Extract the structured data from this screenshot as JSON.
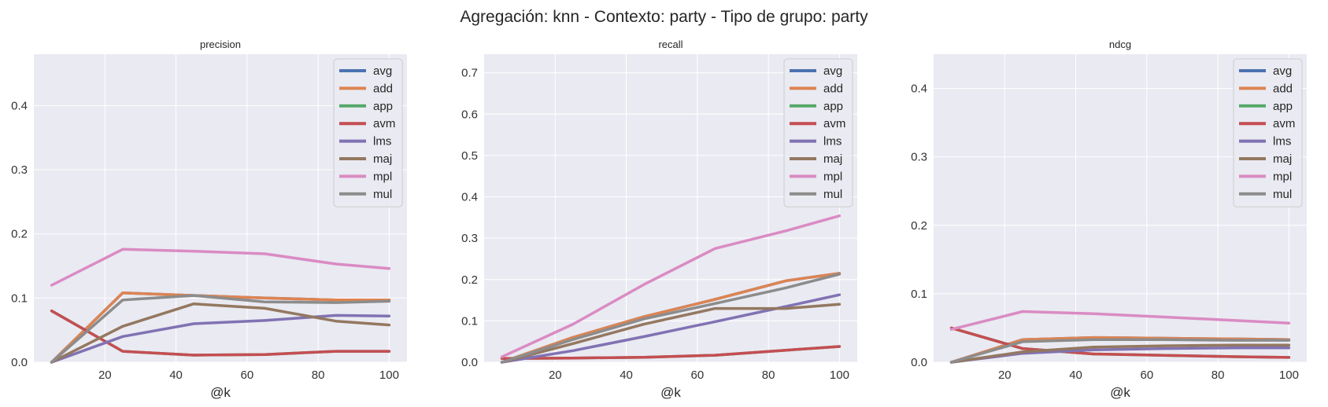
{
  "suptitle": "Agregación: knn - Contexto: party - Tipo de grupo: party",
  "colors": {
    "avg": "#4c72b0",
    "add": "#dd8452",
    "app": "#55a868",
    "avm": "#c44e52",
    "lms": "#8172b3",
    "maj": "#937860",
    "mpl": "#da8bc3",
    "mul": "#8c8c8c",
    "plot_bg": "#eaeaf2",
    "grid": "#ffffff"
  },
  "chart_data": [
    {
      "type": "line",
      "title": "precision",
      "xlabel": "@k",
      "ylabel": "",
      "x": [
        5,
        25,
        45,
        65,
        85,
        100
      ],
      "xticks": [
        20,
        40,
        60,
        80,
        100
      ],
      "yticks": [
        0.0,
        0.1,
        0.2,
        0.3,
        0.4
      ],
      "xlim": [
        0,
        105
      ],
      "ylim": [
        0,
        0.48
      ],
      "legend": "top-right",
      "series": [
        {
          "name": "avg",
          "values": [
            0.0,
            0.108,
            0.104,
            0.1,
            0.097,
            0.097
          ]
        },
        {
          "name": "add",
          "values": [
            0.0,
            0.108,
            0.104,
            0.1,
            0.097,
            0.097
          ]
        },
        {
          "name": "app",
          "values": [
            0.08,
            0.017,
            0.011,
            0.012,
            0.017,
            0.017
          ]
        },
        {
          "name": "avm",
          "values": [
            0.08,
            0.017,
            0.011,
            0.012,
            0.017,
            0.017
          ]
        },
        {
          "name": "lms",
          "values": [
            0.0,
            0.04,
            0.06,
            0.065,
            0.073,
            0.072
          ]
        },
        {
          "name": "maj",
          "values": [
            0.0,
            0.056,
            0.091,
            0.084,
            0.064,
            0.058
          ]
        },
        {
          "name": "mpl",
          "values": [
            0.12,
            0.176,
            0.173,
            0.169,
            0.153,
            0.146
          ]
        },
        {
          "name": "mul",
          "values": [
            0.0,
            0.097,
            0.104,
            0.094,
            0.093,
            0.095
          ]
        }
      ]
    },
    {
      "type": "line",
      "title": "recall",
      "xlabel": "@k",
      "ylabel": "",
      "x": [
        5,
        25,
        45,
        65,
        85,
        100
      ],
      "xticks": [
        20,
        40,
        60,
        80,
        100
      ],
      "yticks": [
        0.0,
        0.1,
        0.2,
        0.3,
        0.4,
        0.5,
        0.6,
        0.7
      ],
      "xlim": [
        0,
        105
      ],
      "ylim": [
        0,
        0.745
      ],
      "legend": "top-right",
      "series": [
        {
          "name": "avg",
          "values": [
            0.0,
            0.06,
            0.11,
            0.152,
            0.197,
            0.215
          ]
        },
        {
          "name": "add",
          "values": [
            0.0,
            0.06,
            0.11,
            0.152,
            0.197,
            0.215
          ]
        },
        {
          "name": "app",
          "values": [
            0.009,
            0.01,
            0.012,
            0.017,
            0.029,
            0.038
          ]
        },
        {
          "name": "avm",
          "values": [
            0.009,
            0.01,
            0.012,
            0.017,
            0.029,
            0.038
          ]
        },
        {
          "name": "lms",
          "values": [
            0.0,
            0.028,
            0.062,
            0.098,
            0.135,
            0.163
          ]
        },
        {
          "name": "maj",
          "values": [
            0.0,
            0.045,
            0.092,
            0.13,
            0.13,
            0.14
          ]
        },
        {
          "name": "mpl",
          "values": [
            0.013,
            0.092,
            0.188,
            0.275,
            0.318,
            0.354
          ]
        },
        {
          "name": "mul",
          "values": [
            0.0,
            0.055,
            0.105,
            0.142,
            0.18,
            0.213
          ]
        }
      ]
    },
    {
      "type": "line",
      "title": "ndcg",
      "xlabel": "@k",
      "ylabel": "",
      "x": [
        5,
        25,
        45,
        65,
        85,
        100
      ],
      "xticks": [
        20,
        40,
        60,
        80,
        100
      ],
      "yticks": [
        0.0,
        0.1,
        0.2,
        0.3,
        0.4
      ],
      "xlim": [
        0,
        105
      ],
      "ylim": [
        0,
        0.45
      ],
      "legend": "top-right",
      "series": [
        {
          "name": "avg",
          "values": [
            0.0,
            0.033,
            0.036,
            0.035,
            0.034,
            0.033
          ]
        },
        {
          "name": "add",
          "values": [
            0.0,
            0.033,
            0.036,
            0.035,
            0.034,
            0.033
          ]
        },
        {
          "name": "app",
          "values": [
            0.05,
            0.02,
            0.012,
            0.01,
            0.008,
            0.007
          ]
        },
        {
          "name": "avm",
          "values": [
            0.05,
            0.02,
            0.012,
            0.01,
            0.008,
            0.007
          ]
        },
        {
          "name": "lms",
          "values": [
            0.0,
            0.013,
            0.018,
            0.02,
            0.021,
            0.021
          ]
        },
        {
          "name": "maj",
          "values": [
            0.0,
            0.015,
            0.022,
            0.024,
            0.025,
            0.025
          ]
        },
        {
          "name": "mpl",
          "values": [
            0.048,
            0.074,
            0.071,
            0.066,
            0.061,
            0.057
          ]
        },
        {
          "name": "mul",
          "values": [
            0.0,
            0.03,
            0.033,
            0.033,
            0.032,
            0.032
          ]
        }
      ]
    }
  ]
}
